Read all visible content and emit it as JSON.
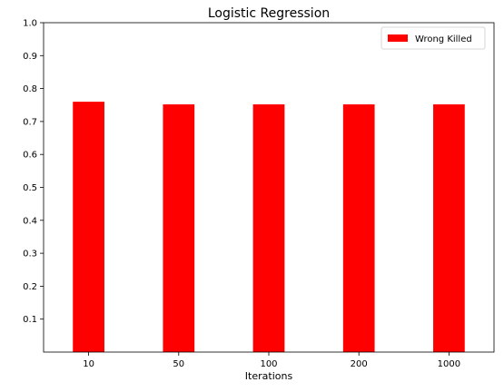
{
  "chart_data": {
    "type": "bar",
    "title": "Logistic Regression",
    "xlabel": "Iterations",
    "ylabel": "",
    "categories": [
      "10",
      "50",
      "100",
      "200",
      "1000"
    ],
    "series": [
      {
        "name": "Wrong Killed",
        "color": "#ff0000",
        "values": [
          0.76,
          0.752,
          0.752,
          0.752,
          0.752
        ]
      }
    ],
    "ylim": [
      0.0,
      1.0
    ],
    "yticks": [
      "0.1",
      "0.2",
      "0.3",
      "0.4",
      "0.5",
      "0.6",
      "0.7",
      "0.8",
      "0.9",
      "1.0"
    ],
    "grid": false,
    "legend_position": "top-right"
  }
}
